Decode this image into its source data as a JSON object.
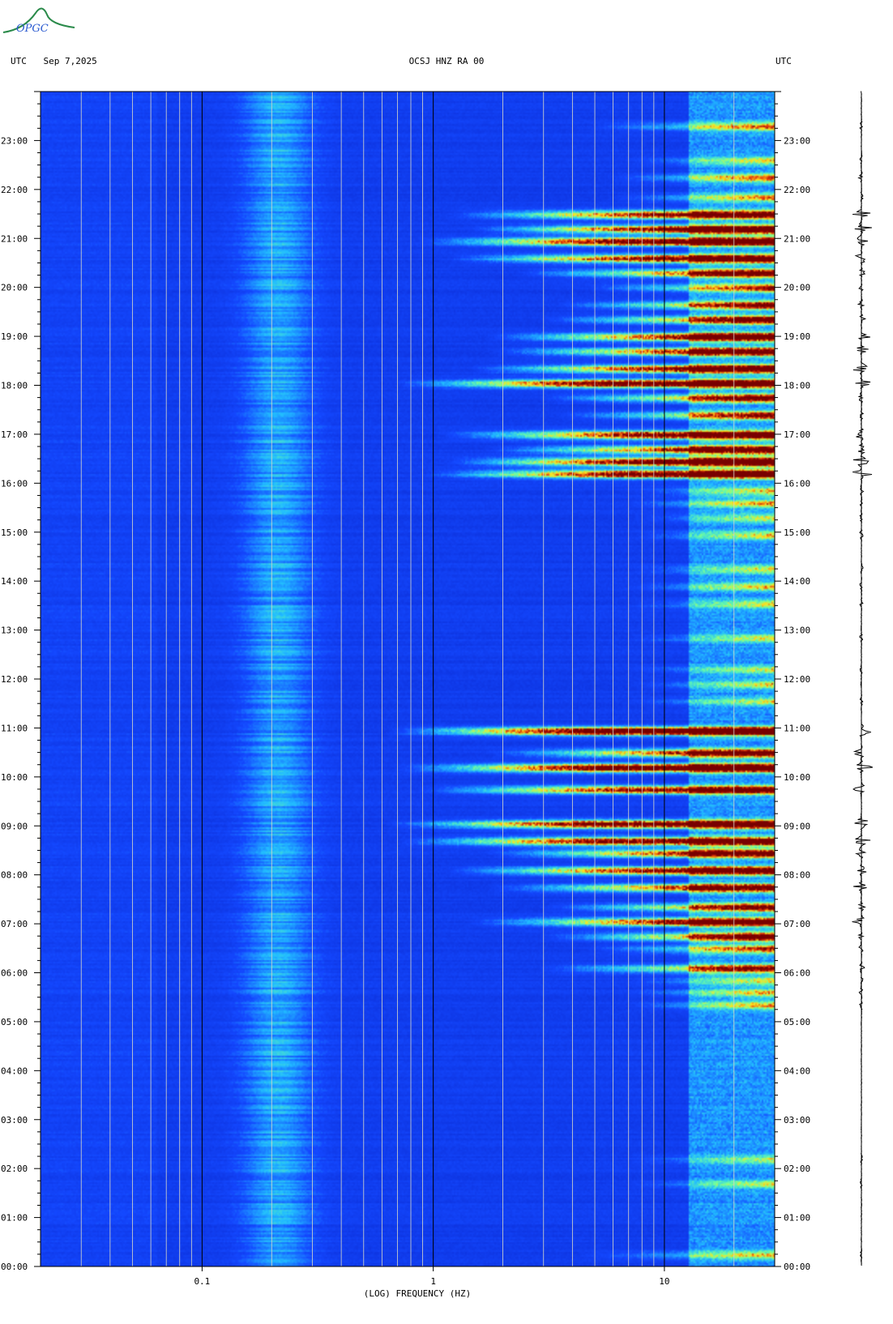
{
  "header": {
    "left_tz": "UTC",
    "date": "Sep 7,2025",
    "station": "OCSJ HNZ RA 00",
    "right_tz": "UTC"
  },
  "logo": {
    "text": "OPGC"
  },
  "colors": {
    "background_blue": "#0a2fd6",
    "mid_blue": "#1a50ff",
    "cyan": "#25c8ff",
    "yellow": "#ffe020",
    "red": "#e02010",
    "dark_red": "#8a0000"
  },
  "chart_data": {
    "type": "heatmap",
    "xlabel": "(LOG) FREQUENCY (HZ)",
    "x_scale": "log",
    "xlim": [
      0.02,
      30
    ],
    "x_ticks": [
      {
        "value": 0.1,
        "label": "0.1"
      },
      {
        "value": 1,
        "label": "1"
      },
      {
        "value": 10,
        "label": "10"
      }
    ],
    "y_ticks": [
      "00:00",
      "01:00",
      "02:00",
      "03:00",
      "04:00",
      "05:00",
      "06:00",
      "07:00",
      "08:00",
      "09:00",
      "10:00",
      "11:00",
      "12:00",
      "13:00",
      "14:00",
      "15:00",
      "16:00",
      "17:00",
      "18:00",
      "19:00",
      "20:00",
      "21:00",
      "22:00",
      "23:00"
    ],
    "ylim_hours": [
      0,
      24
    ],
    "background_band_hz": [
      0.15,
      0.3
    ],
    "events": [
      {
        "t": 0.25,
        "fmin": 7,
        "amp": 0.45
      },
      {
        "t": 1.7,
        "fmin": 12,
        "amp": 0.5
      },
      {
        "t": 2.2,
        "fmin": 12,
        "amp": 0.45
      },
      {
        "t": 5.35,
        "fmin": 12,
        "amp": 0.65
      },
      {
        "t": 5.6,
        "fmin": 12,
        "amp": 0.6
      },
      {
        "t": 5.85,
        "fmin": 12,
        "amp": 0.55
      },
      {
        "t": 6.1,
        "fmin": 5,
        "amp": 0.75
      },
      {
        "t": 6.5,
        "fmin": 8,
        "amp": 0.7
      },
      {
        "t": 6.75,
        "fmin": 5,
        "amp": 0.85
      },
      {
        "t": 7.05,
        "fmin": 2.5,
        "amp": 0.9
      },
      {
        "t": 7.35,
        "fmin": 5,
        "amp": 0.8
      },
      {
        "t": 7.75,
        "fmin": 3,
        "amp": 0.85
      },
      {
        "t": 8.1,
        "fmin": 2,
        "amp": 0.9
      },
      {
        "t": 8.45,
        "fmin": 3,
        "amp": 0.85
      },
      {
        "t": 8.7,
        "fmin": 1.2,
        "amp": 0.95
      },
      {
        "t": 9.05,
        "fmin": 1.1,
        "amp": 1.0
      },
      {
        "t": 9.75,
        "fmin": 1.5,
        "amp": 0.85
      },
      {
        "t": 10.2,
        "fmin": 1.2,
        "amp": 1.05
      },
      {
        "t": 10.5,
        "fmin": 3,
        "amp": 0.85
      },
      {
        "t": 10.95,
        "fmin": 1.1,
        "amp": 1.1
      },
      {
        "t": 11.55,
        "fmin": 12,
        "amp": 0.5
      },
      {
        "t": 11.9,
        "fmin": 12,
        "amp": 0.6
      },
      {
        "t": 12.2,
        "fmin": 12,
        "amp": 0.5
      },
      {
        "t": 12.85,
        "fmin": 12,
        "amp": 0.55
      },
      {
        "t": 13.55,
        "fmin": 12,
        "amp": 0.55
      },
      {
        "t": 13.9,
        "fmin": 12,
        "amp": 0.6
      },
      {
        "t": 14.25,
        "fmin": 12,
        "amp": 0.55
      },
      {
        "t": 14.95,
        "fmin": 12,
        "amp": 0.6
      },
      {
        "t": 15.3,
        "fmin": 12,
        "amp": 0.55
      },
      {
        "t": 15.6,
        "fmin": 12,
        "amp": 0.65
      },
      {
        "t": 15.85,
        "fmin": 12,
        "amp": 0.6
      },
      {
        "t": 16.2,
        "fmin": 1.6,
        "amp": 1.0
      },
      {
        "t": 16.45,
        "fmin": 2,
        "amp": 1.05
      },
      {
        "t": 16.7,
        "fmin": 3,
        "amp": 0.9
      },
      {
        "t": 17.0,
        "fmin": 1.8,
        "amp": 0.95
      },
      {
        "t": 17.4,
        "fmin": 6,
        "amp": 0.75
      },
      {
        "t": 17.75,
        "fmin": 5,
        "amp": 0.8
      },
      {
        "t": 18.05,
        "fmin": 1.2,
        "amp": 1.0
      },
      {
        "t": 18.35,
        "fmin": 2.5,
        "amp": 0.95
      },
      {
        "t": 18.7,
        "fmin": 3,
        "amp": 0.9
      },
      {
        "t": 19.0,
        "fmin": 3,
        "amp": 0.95
      },
      {
        "t": 19.35,
        "fmin": 5,
        "amp": 0.85
      },
      {
        "t": 19.65,
        "fmin": 6,
        "amp": 0.8
      },
      {
        "t": 20.0,
        "fmin": 8,
        "amp": 0.75
      },
      {
        "t": 20.3,
        "fmin": 4,
        "amp": 0.85
      },
      {
        "t": 20.6,
        "fmin": 2,
        "amp": 0.95
      },
      {
        "t": 20.95,
        "fmin": 1.5,
        "amp": 1.0
      },
      {
        "t": 21.2,
        "fmin": 2.5,
        "amp": 1.0
      },
      {
        "t": 21.5,
        "fmin": 2,
        "amp": 0.9
      },
      {
        "t": 21.85,
        "fmin": 10,
        "amp": 0.65
      },
      {
        "t": 22.25,
        "fmin": 10,
        "amp": 0.7
      },
      {
        "t": 22.6,
        "fmin": 12,
        "amp": 0.55
      },
      {
        "t": 23.3,
        "fmin": 8,
        "amp": 0.6
      }
    ]
  }
}
